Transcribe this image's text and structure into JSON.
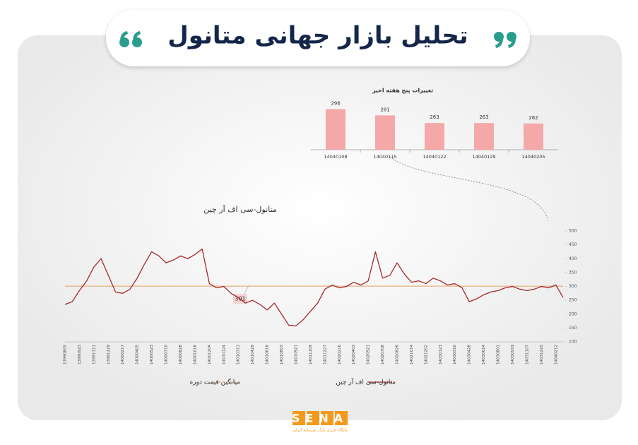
{
  "header": {
    "title": "تحلیل بازار جهانی متانول"
  },
  "logo": {
    "name": "SENA",
    "tagline": "پایگاه خبری بازار سرمایه ایران"
  },
  "chart_data": [
    {
      "type": "bar",
      "title": "تغییرات پنج هفته اخیر",
      "categories": [
        "14040108",
        "14040115",
        "14040122",
        "14040129",
        "14040205"
      ],
      "values": [
        296,
        281,
        263,
        263,
        262
      ],
      "color": "#f4a9a8",
      "ylim": [
        200,
        300
      ]
    },
    {
      "type": "line",
      "title": "متانول-سی اف آر چین",
      "categories": [
        "13990805",
        null,
        "13990923",
        null,
        "13991111",
        null,
        "13991229",
        null,
        "14000217",
        null,
        "14000405",
        null,
        "14000523",
        null,
        "14000710",
        null,
        "14000828",
        null,
        "14001016",
        null,
        "14001204",
        null,
        "14010124",
        null,
        "14010311",
        null,
        "14010429",
        null,
        "14010616",
        null,
        "14010803",
        null,
        "14010921",
        null,
        "14011109",
        null,
        "14011227",
        null,
        "14020216",
        null,
        "14020403",
        null,
        "14020521",
        null,
        "14020708",
        null,
        "14020826",
        null,
        "14021014",
        null,
        "14021202",
        null,
        "14030123",
        null,
        "14030310",
        null,
        "14030428",
        null,
        "14030614",
        null,
        "14030801",
        null,
        "14030919",
        null,
        "14031107",
        null,
        "14031225",
        null,
        "14040212",
        null
      ],
      "series": [
        {
          "name": "متانول-سی اف آر چین",
          "color": "#a8282a",
          "values": [
            235,
            245,
            285,
            320,
            370,
            400,
            340,
            280,
            275,
            290,
            330,
            380,
            425,
            410,
            385,
            395,
            410,
            400,
            415,
            435,
            310,
            295,
            300,
            275,
            260,
            240,
            250,
            235,
            215,
            240,
            200,
            160,
            158,
            180,
            210,
            240,
            290,
            305,
            295,
            300,
            315,
            305,
            320,
            425,
            330,
            340,
            385,
            345,
            315,
            320,
            310,
            330,
            320,
            305,
            310,
            295,
            245,
            255,
            270,
            280,
            285,
            295,
            300,
            290,
            285,
            290,
            300,
            295,
            305,
            260
          ]
        }
      ],
      "reference_line": {
        "name": "میانگین قیمت دوره",
        "value": 301,
        "color": "#e8a060"
      },
      "ylim": [
        100,
        500
      ],
      "yticks": [
        100,
        150,
        200,
        250,
        300,
        350,
        400,
        450,
        500
      ]
    }
  ]
}
